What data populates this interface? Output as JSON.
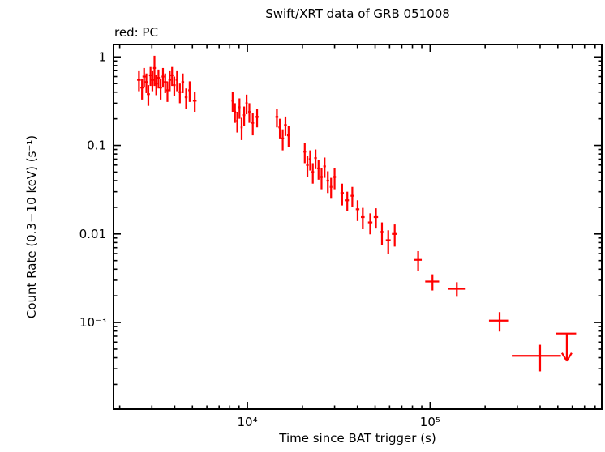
{
  "chart_data": {
    "type": "scatter",
    "title": "Swift/XRT data of GRB 051008",
    "annotation": "red: PC",
    "xlabel": "Time since BAT trigger (s)",
    "ylabel": "Count Rate (0.3−10 keV) (s⁻¹)",
    "xscale": "log",
    "yscale": "log",
    "grid": false,
    "xlim": [
      1850,
      870000
    ],
    "ylim": [
      0.000105,
      1.38
    ],
    "x_major": [
      10000,
      100000
    ],
    "x_tick_labels": [
      "10⁴",
      "10⁵"
    ],
    "y_major": [
      1,
      0.1,
      0.01,
      0.001
    ],
    "y_tick_labels": [
      "1",
      "0.1",
      "0.01",
      "10⁻³"
    ],
    "point_style": "cross-error-bars",
    "series": [
      {
        "name": "PC",
        "color": "#ff0000",
        "points_format": [
          "time_s",
          "time_err_s",
          "rate_cps",
          "rate_err_cps"
        ],
        "points": [
          [
            2550,
            60,
            0.55,
            0.14
          ],
          [
            2650,
            55,
            0.45,
            0.12
          ],
          [
            2720,
            55,
            0.6,
            0.15
          ],
          [
            2800,
            55,
            0.52,
            0.13
          ],
          [
            2870,
            55,
            0.38,
            0.1
          ],
          [
            2950,
            55,
            0.62,
            0.15
          ],
          [
            3020,
            55,
            0.55,
            0.14
          ],
          [
            3100,
            55,
            0.75,
            0.28
          ],
          [
            3170,
            55,
            0.5,
            0.13
          ],
          [
            3260,
            60,
            0.58,
            0.14
          ],
          [
            3350,
            60,
            0.45,
            0.12
          ],
          [
            3450,
            60,
            0.6,
            0.15
          ],
          [
            3550,
            60,
            0.52,
            0.13
          ],
          [
            3650,
            60,
            0.42,
            0.11
          ],
          [
            3760,
            65,
            0.55,
            0.14
          ],
          [
            3870,
            65,
            0.62,
            0.15
          ],
          [
            3980,
            65,
            0.48,
            0.12
          ],
          [
            4120,
            70,
            0.55,
            0.14
          ],
          [
            4270,
            70,
            0.4,
            0.1
          ],
          [
            4430,
            75,
            0.52,
            0.13
          ],
          [
            4620,
            80,
            0.35,
            0.09
          ],
          [
            4830,
            85,
            0.42,
            0.11
          ],
          [
            5150,
            120,
            0.32,
            0.08
          ],
          [
            8300,
            120,
            0.32,
            0.08
          ],
          [
            8550,
            120,
            0.24,
            0.06
          ],
          [
            8800,
            120,
            0.19,
            0.05
          ],
          [
            9050,
            120,
            0.27,
            0.07
          ],
          [
            9300,
            120,
            0.16,
            0.045
          ],
          [
            9600,
            140,
            0.22,
            0.055
          ],
          [
            9900,
            140,
            0.3,
            0.075
          ],
          [
            10250,
            150,
            0.24,
            0.06
          ],
          [
            10700,
            180,
            0.18,
            0.05
          ],
          [
            11300,
            220,
            0.21,
            0.05
          ],
          [
            14500,
            260,
            0.21,
            0.05
          ],
          [
            15050,
            260,
            0.16,
            0.04
          ],
          [
            15600,
            270,
            0.12,
            0.032
          ],
          [
            16150,
            280,
            0.17,
            0.042
          ],
          [
            16800,
            320,
            0.13,
            0.035
          ],
          [
            20600,
            350,
            0.085,
            0.022
          ],
          [
            21300,
            350,
            0.06,
            0.016
          ],
          [
            22050,
            360,
            0.07,
            0.018
          ],
          [
            22800,
            380,
            0.05,
            0.013
          ],
          [
            23600,
            380,
            0.072,
            0.018
          ],
          [
            24500,
            400,
            0.055,
            0.014
          ],
          [
            25450,
            420,
            0.044,
            0.012
          ],
          [
            26450,
            430,
            0.058,
            0.015
          ],
          [
            27550,
            450,
            0.04,
            0.011
          ],
          [
            28700,
            470,
            0.034,
            0.009
          ],
          [
            30000,
            520,
            0.044,
            0.012
          ],
          [
            33000,
            700,
            0.029,
            0.008
          ],
          [
            35200,
            750,
            0.024,
            0.006
          ],
          [
            37500,
            800,
            0.027,
            0.007
          ],
          [
            40100,
            900,
            0.019,
            0.005
          ],
          [
            42800,
            1000,
            0.0155,
            0.0042
          ],
          [
            47000,
            1300,
            0.0135,
            0.0036
          ],
          [
            50500,
            1400,
            0.0155,
            0.004
          ],
          [
            54500,
            1600,
            0.0105,
            0.003
          ],
          [
            59000,
            1800,
            0.0085,
            0.0025
          ],
          [
            64000,
            2200,
            0.01,
            0.0028
          ],
          [
            86000,
            4000,
            0.0051,
            0.0013
          ],
          [
            103000,
            9000,
            0.0029,
            0.0006
          ],
          [
            140000,
            15000,
            0.0024,
            0.00045
          ],
          [
            240000,
            30000,
            0.00105,
            0.00026
          ],
          [
            400000,
            120000,
            0.00042,
            0.00014
          ]
        ],
        "upper_limits_format": [
          "time_s",
          "time_err_s",
          "rate_upper_limit_cps"
        ],
        "upper_limits": [
          [
            560000,
            70000,
            0.00075
          ]
        ]
      }
    ],
    "legend_position": "top-left"
  }
}
